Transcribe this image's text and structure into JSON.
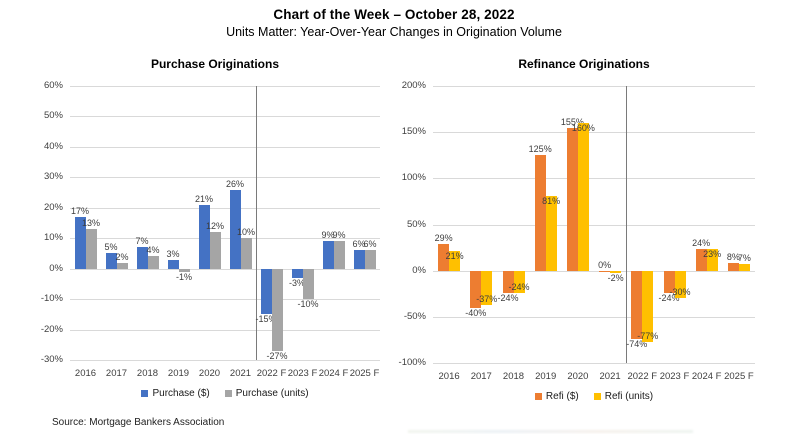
{
  "header": {
    "title": "Chart of the Week – October 28, 2022",
    "subtitle": "Units Matter: Year-Over-Year Changes in Origination Volume"
  },
  "footer": {
    "source": "Source: Mortgage Bankers Association"
  },
  "chart_data": [
    {
      "type": "bar",
      "title": "Purchase Originations",
      "categories": [
        "2016",
        "2017",
        "2018",
        "2019",
        "2020",
        "2021",
        "2022 F",
        "2023 F",
        "2024 F",
        "2025 F"
      ],
      "series": [
        {
          "name": "Purchase ($)",
          "color": "#4472C4",
          "label_placement": "outside",
          "values": [
            17,
            5,
            7,
            3,
            21,
            26,
            -15,
            -3,
            9,
            6
          ]
        },
        {
          "name": "Purchase (units)",
          "color": "#A5A5A5",
          "label_placement": "outside",
          "values": [
            13,
            2,
            4,
            -1,
            12,
            10,
            -27,
            -10,
            9,
            6
          ]
        }
      ],
      "ylim": [
        -30,
        60
      ],
      "ytick_step": 10,
      "tick_suffix": "%",
      "label_suffix": "%",
      "grid": true,
      "legend_position": "bottom",
      "forecast_divider_after": "2021"
    },
    {
      "type": "bar",
      "title": "Refinance Originations",
      "categories": [
        "2016",
        "2017",
        "2018",
        "2019",
        "2020",
        "2021",
        "2022 F",
        "2023 F",
        "2024 F",
        "2025 F"
      ],
      "series": [
        {
          "name": "Refi ($)",
          "color": "#ED7D31",
          "label_placement": "outside",
          "values": [
            29,
            -40,
            -24,
            125,
            155,
            0,
            -74,
            -24,
            24,
            8
          ]
        },
        {
          "name": "Refi (units)",
          "color": "#FFC000",
          "label_placement": "inside",
          "values": [
            21,
            -37,
            -24,
            81,
            160,
            -2,
            -77,
            -30,
            23,
            7
          ]
        }
      ],
      "ylim": [
        -100,
        200
      ],
      "ytick_step": 50,
      "tick_suffix": "%",
      "label_suffix": "%",
      "grid": true,
      "legend_position": "bottom",
      "forecast_divider_after": "2021"
    }
  ]
}
